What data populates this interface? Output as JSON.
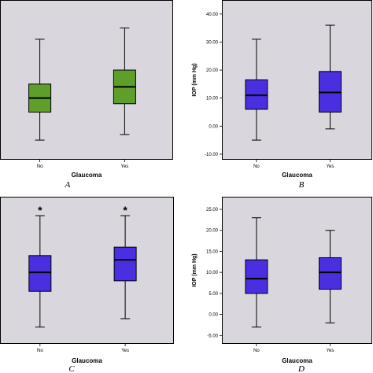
{
  "chart_data": [
    {
      "type": "box",
      "panel_label": "A",
      "xlabel": "Glaucoma",
      "ylabel": "",
      "show_y_axis": false,
      "categories": [
        "No",
        "Yes"
      ],
      "ylim": [
        -12,
        45
      ],
      "yticks": [],
      "box_color": "#5e9e2a",
      "significance_marks": [],
      "series": [
        {
          "category": "No",
          "whisker_low": -5,
          "q1": 5,
          "median": 10,
          "q3": 15,
          "whisker_high": 31
        },
        {
          "category": "Yes",
          "whisker_low": -3,
          "q1": 8,
          "median": 14,
          "q3": 20,
          "whisker_high": 35
        }
      ]
    },
    {
      "type": "box",
      "panel_label": "B",
      "xlabel": "Glaucoma",
      "ylabel": "IOP (mm Hg)",
      "show_y_axis": true,
      "categories": [
        "No",
        "Yes"
      ],
      "ylim": [
        -12,
        45
      ],
      "yticks": [
        "-10.00",
        "0.00",
        "10.00",
        "20.00",
        "30.00",
        "40.00"
      ],
      "box_color": "#4a2fe0",
      "significance_marks": [],
      "series": [
        {
          "category": "No",
          "whisker_low": -5,
          "q1": 6,
          "median": 11,
          "q3": 16.5,
          "whisker_high": 31
        },
        {
          "category": "Yes",
          "whisker_low": -1,
          "q1": 5,
          "median": 12,
          "q3": 19.5,
          "whisker_high": 36
        }
      ]
    },
    {
      "type": "box",
      "panel_label": "C",
      "xlabel": "Glaucoma",
      "ylabel": "",
      "show_y_axis": false,
      "categories": [
        "No",
        "Yes"
      ],
      "ylim": [
        -7,
        28
      ],
      "yticks": [],
      "box_color": "#4a2fe0",
      "significance_marks": [
        "*",
        "*"
      ],
      "series": [
        {
          "category": "No",
          "whisker_low": -3,
          "q1": 5.5,
          "median": 10,
          "q3": 14,
          "whisker_high": 23.5
        },
        {
          "category": "Yes",
          "whisker_low": -1,
          "q1": 8,
          "median": 13,
          "q3": 16,
          "whisker_high": 23.5
        }
      ]
    },
    {
      "type": "box",
      "panel_label": "D",
      "xlabel": "Glaucoma",
      "ylabel": "IOP (mm Hg)",
      "show_y_axis": true,
      "categories": [
        "No",
        "Yes"
      ],
      "ylim": [
        -7,
        28
      ],
      "yticks": [
        "-5.00",
        "0.00",
        "5.00",
        "10.00",
        "15.00",
        "20.00",
        "25.00"
      ],
      "box_color": "#4a2fe0",
      "significance_marks": [],
      "series": [
        {
          "category": "No",
          "whisker_low": -3,
          "q1": 5,
          "median": 8.5,
          "q3": 13,
          "whisker_high": 23
        },
        {
          "category": "Yes",
          "whisker_low": -2,
          "q1": 6,
          "median": 10,
          "q3": 13.5,
          "whisker_high": 20
        }
      ]
    }
  ]
}
